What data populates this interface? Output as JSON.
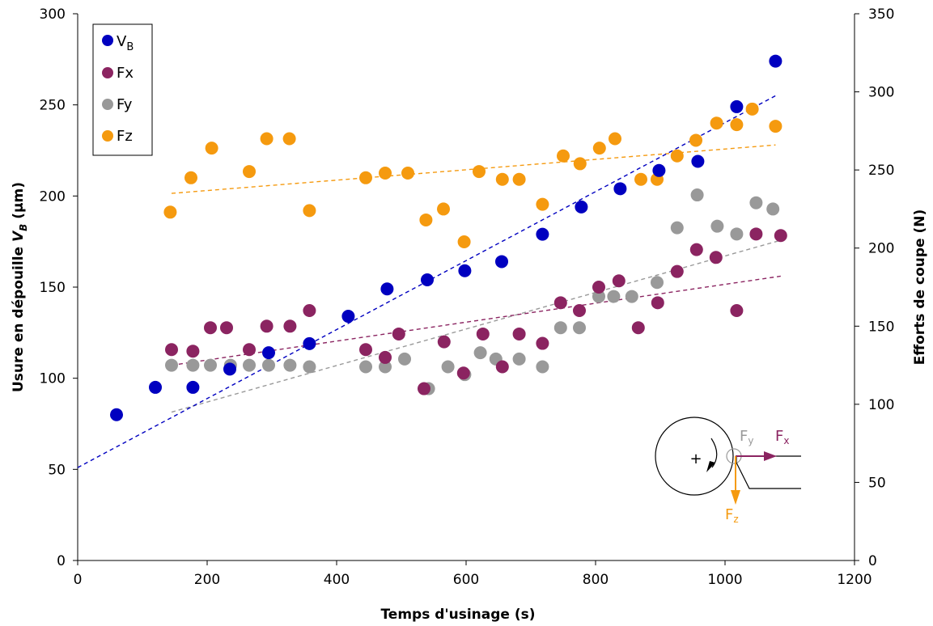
{
  "chart_data": {
    "type": "scatter",
    "title": "",
    "xlabel": "Temps d'usinage (s)",
    "ylabel_left": "Usure en dépouille V_B (µm)",
    "ylabel_left_parts": {
      "prefix": "Usure en dépouille ",
      "var": "V",
      "sub": "B",
      "suffix": " (µm)"
    },
    "ylabel_right": "Efforts de coupe (N)",
    "xlim": [
      0,
      1200
    ],
    "ylim_left": [
      0,
      300
    ],
    "ylim_right": [
      0,
      350
    ],
    "x_ticks": [
      "0",
      "200",
      "400",
      "600",
      "800",
      "1000",
      "1200"
    ],
    "y_left_ticks": [
      "0",
      "50",
      "100",
      "150",
      "200",
      "250",
      "300"
    ],
    "y_right_ticks": [
      "0",
      "50",
      "100",
      "150",
      "200",
      "250",
      "300",
      "350"
    ],
    "grid": false,
    "legend_position": "top-left",
    "series": [
      {
        "name": "V_B",
        "legend_main": "V",
        "legend_sub": "B",
        "axis": "left",
        "color": "#0000c0",
        "points": [
          [
            60,
            80
          ],
          [
            120,
            95
          ],
          [
            178,
            95
          ],
          [
            235,
            105
          ],
          [
            295,
            114
          ],
          [
            358,
            119
          ],
          [
            418,
            134
          ],
          [
            478,
            149
          ],
          [
            540,
            154
          ],
          [
            598,
            159
          ],
          [
            655,
            164
          ],
          [
            718,
            179
          ],
          [
            778,
            194
          ],
          [
            838,
            204
          ],
          [
            898,
            214
          ],
          [
            958,
            219
          ],
          [
            1018,
            249
          ],
          [
            1078,
            274
          ]
        ],
        "trend": {
          "x": [
            0,
            1078
          ],
          "y": [
            51,
            255
          ]
        }
      },
      {
        "name": "Fx",
        "axis": "right",
        "color": "#8b2461",
        "points": [
          [
            145,
            135
          ],
          [
            178,
            134
          ],
          [
            205,
            149
          ],
          [
            230,
            149
          ],
          [
            265,
            135
          ],
          [
            292,
            150
          ],
          [
            328,
            150
          ],
          [
            358,
            160
          ],
          [
            445,
            135
          ],
          [
            475,
            130
          ],
          [
            496,
            145
          ],
          [
            535,
            110
          ],
          [
            566,
            140
          ],
          [
            596,
            120
          ],
          [
            626,
            145
          ],
          [
            656,
            124
          ],
          [
            682,
            145
          ],
          [
            718,
            139
          ],
          [
            746,
            165
          ],
          [
            775,
            160
          ],
          [
            805,
            175
          ],
          [
            836,
            179
          ],
          [
            866,
            149
          ],
          [
            896,
            165
          ],
          [
            926,
            185
          ],
          [
            956,
            199
          ],
          [
            986,
            194
          ],
          [
            1018,
            160
          ],
          [
            1048,
            209
          ],
          [
            1086,
            208
          ]
        ],
        "trend": {
          "x": [
            145,
            1086
          ],
          "y": [
            125,
            182
          ]
        }
      },
      {
        "name": "Fy",
        "axis": "right",
        "color": "#999999",
        "points": [
          [
            145,
            125
          ],
          [
            178,
            125
          ],
          [
            205,
            125
          ],
          [
            236,
            125
          ],
          [
            265,
            125
          ],
          [
            295,
            125
          ],
          [
            328,
            125
          ],
          [
            358,
            124
          ],
          [
            445,
            124
          ],
          [
            475,
            124
          ],
          [
            505,
            129
          ],
          [
            542,
            110
          ],
          [
            572,
            124
          ],
          [
            598,
            119
          ],
          [
            622,
            133
          ],
          [
            646,
            129
          ],
          [
            682,
            129
          ],
          [
            718,
            124
          ],
          [
            746,
            149
          ],
          [
            775,
            149
          ],
          [
            805,
            169
          ],
          [
            828,
            169
          ],
          [
            856,
            169
          ],
          [
            895,
            178
          ],
          [
            926,
            213
          ],
          [
            957,
            234
          ],
          [
            988,
            214
          ],
          [
            1018,
            209
          ],
          [
            1048,
            229
          ],
          [
            1074,
            225
          ]
        ],
        "trend": {
          "x": [
            145,
            1086
          ],
          "y": [
            95,
            205
          ]
        }
      },
      {
        "name": "Fz",
        "axis": "right",
        "color": "#f59a0f",
        "points": [
          [
            143,
            223
          ],
          [
            175,
            245
          ],
          [
            207,
            264
          ],
          [
            265,
            249
          ],
          [
            292,
            270
          ],
          [
            327,
            270
          ],
          [
            358,
            224
          ],
          [
            445,
            245
          ],
          [
            475,
            248
          ],
          [
            510,
            248
          ],
          [
            538,
            218
          ],
          [
            565,
            225
          ],
          [
            597,
            204
          ],
          [
            620,
            249
          ],
          [
            656,
            244
          ],
          [
            682,
            244
          ],
          [
            718,
            228
          ],
          [
            750,
            259
          ],
          [
            776,
            254
          ],
          [
            806,
            264
          ],
          [
            830,
            270
          ],
          [
            870,
            244
          ],
          [
            895,
            244
          ],
          [
            926,
            259
          ],
          [
            955,
            269
          ],
          [
            987,
            280
          ],
          [
            1018,
            279
          ],
          [
            1042,
            289
          ],
          [
            1078,
            278
          ]
        ],
        "trend": {
          "x": [
            145,
            1078
          ],
          "y": [
            235,
            266
          ]
        }
      }
    ]
  },
  "diagram": {
    "label_fy_main": "F",
    "label_fy_sub": "y",
    "label_fx_main": "F",
    "label_fx_sub": "x",
    "label_fz_main": "F",
    "label_fz_sub": "z",
    "plus": "+"
  }
}
